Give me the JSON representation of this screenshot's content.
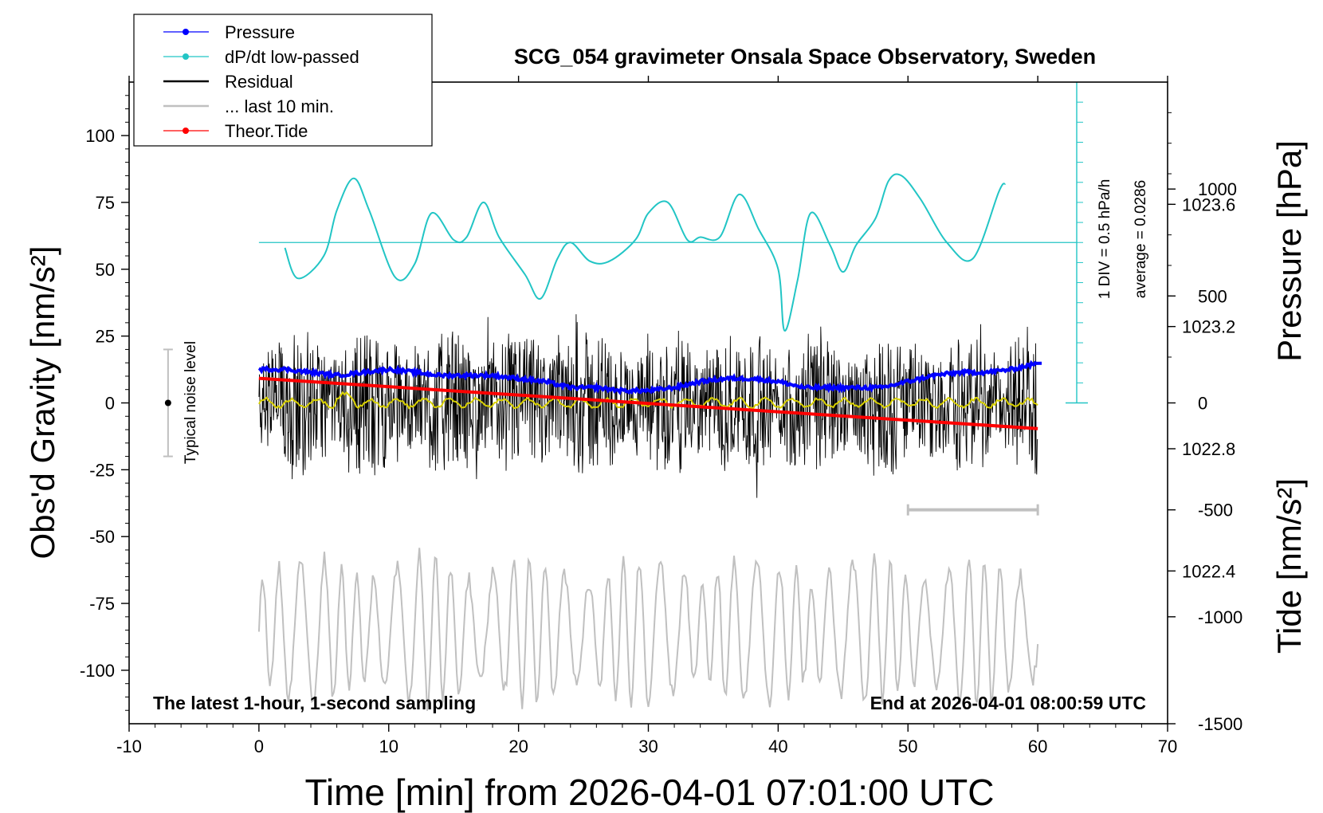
{
  "chart_data": {
    "type": "line",
    "title": "SCG_054 gravimeter Onsala Space Observatory, Sweden",
    "xlabel": "Time [min] from 2026-04-01 07:01:00 UTC",
    "ylabel": "Obs'd Gravity [nm/s²]",
    "y2label": "Pressure [hPa]",
    "y3label": "Tide [nm/s²]",
    "xlim": [
      -10,
      70
    ],
    "ylim": [
      -120,
      120
    ],
    "pressure_lim": [
      1021.9,
      1024.0
    ],
    "tide_lim": [
      -1500,
      1500
    ],
    "x_ticks": [
      "-10",
      "0",
      "10",
      "20",
      "30",
      "40",
      "50",
      "60",
      "70"
    ],
    "y_ticks": [
      "100",
      "75",
      "50",
      "25",
      "0",
      "-25",
      "-50",
      "-75",
      "-100"
    ],
    "pressure_ticks": [
      "1023.6",
      "1023.2",
      "1022.8",
      "1022.4"
    ],
    "tide_ticks": [
      "1000",
      "500",
      "0",
      "-500",
      "-1000",
      "-1500"
    ],
    "legend_position": "top-left",
    "legend": [
      {
        "label": "Pressure",
        "color": "#0000ff",
        "marker": true
      },
      {
        "label": "dP/dt low-passed",
        "color": "#22c5c5",
        "marker": true
      },
      {
        "label": "Residual",
        "color": "#000000",
        "marker": false
      },
      {
        "label": "... last 10 min.",
        "color": "#c0c0c0",
        "marker": false
      },
      {
        "label": "Theor.Tide",
        "color": "#ff0000",
        "marker": true
      }
    ],
    "series": [
      {
        "name": "Pressure",
        "units": "hPa",
        "color": "#0000ff",
        "x": [
          0,
          2,
          4,
          6,
          8,
          10,
          12,
          14,
          16,
          18,
          20,
          22,
          24,
          26,
          28,
          30,
          32,
          34,
          36,
          38,
          40,
          42,
          44,
          46,
          48,
          50,
          52,
          54,
          56,
          58,
          60
        ],
        "values": [
          1023.06,
          1023.06,
          1023.05,
          1023.04,
          1023.05,
          1023.06,
          1023.05,
          1023.04,
          1023.04,
          1023.04,
          1023.03,
          1023.02,
          1023.0,
          1023.0,
          1022.99,
          1022.99,
          1023.0,
          1023.02,
          1023.03,
          1023.03,
          1023.02,
          1023.0,
          1023.0,
          1023.0,
          1023.0,
          1023.02,
          1023.04,
          1023.05,
          1023.05,
          1023.06,
          1023.08
        ]
      },
      {
        "name": "dP/dt low-passed",
        "units": "hPa/h",
        "color": "#22c5c5",
        "x": [
          2,
          3,
          5,
          6,
          7.3,
          8.5,
          10.5,
          12,
          13.3,
          15,
          16,
          17.3,
          18.5,
          20.5,
          21.7,
          23,
          24,
          25.5,
          27,
          29,
          30,
          31.5,
          33,
          34,
          35.5,
          37,
          38.5,
          40,
          40.5,
          41.5,
          42.5,
          44,
          45,
          46,
          47.5,
          48.5,
          49.5,
          51,
          53,
          55,
          57,
          57.5
        ],
        "values": [
          -0.1,
          -0.67,
          -0.25,
          0.6,
          1.2,
          0.6,
          -0.65,
          -0.4,
          0.55,
          0.05,
          0.1,
          0.75,
          0.1,
          -0.6,
          -1.05,
          -0.3,
          0.0,
          -0.35,
          -0.35,
          0.05,
          0.55,
          0.75,
          0.05,
          0.1,
          0.1,
          0.9,
          0.25,
          -0.5,
          -1.65,
          -0.7,
          0.55,
          -0.05,
          -0.55,
          -0.05,
          0.45,
          1.15,
          1.25,
          0.8,
          0.0,
          -0.3,
          0.95,
          1.1
        ]
      },
      {
        "name": "Residual",
        "units": "nm/s²",
        "color": "#000000",
        "x_range": [
          0,
          60
        ],
        "envelope": [
          -45,
          55
        ],
        "mean": 0
      },
      {
        "name": "... last 10 min.",
        "units": "nm/s²",
        "color": "#c0c0c0",
        "x_range": [
          0,
          60
        ],
        "offset": -85,
        "envelope": [
          -110,
          -60
        ]
      },
      {
        "name": "Theor.Tide",
        "units": "nm/s²",
        "color": "#ff0000",
        "x": [
          0,
          60
        ],
        "values": [
          115,
          -120
        ]
      }
    ],
    "annotations": {
      "noise_label": "Typical noise level",
      "noise_range": [
        -20,
        20
      ],
      "pressure_scale_label": "1 DIV = 0.5 hPa/h",
      "pressure_average_label": "average = 0.0286",
      "window_bar_x": [
        50,
        60
      ],
      "bottom_left": "The latest 1-hour, 1-second sampling",
      "bottom_right": "End at 2026-04-01 08:00:59 UTC"
    }
  }
}
